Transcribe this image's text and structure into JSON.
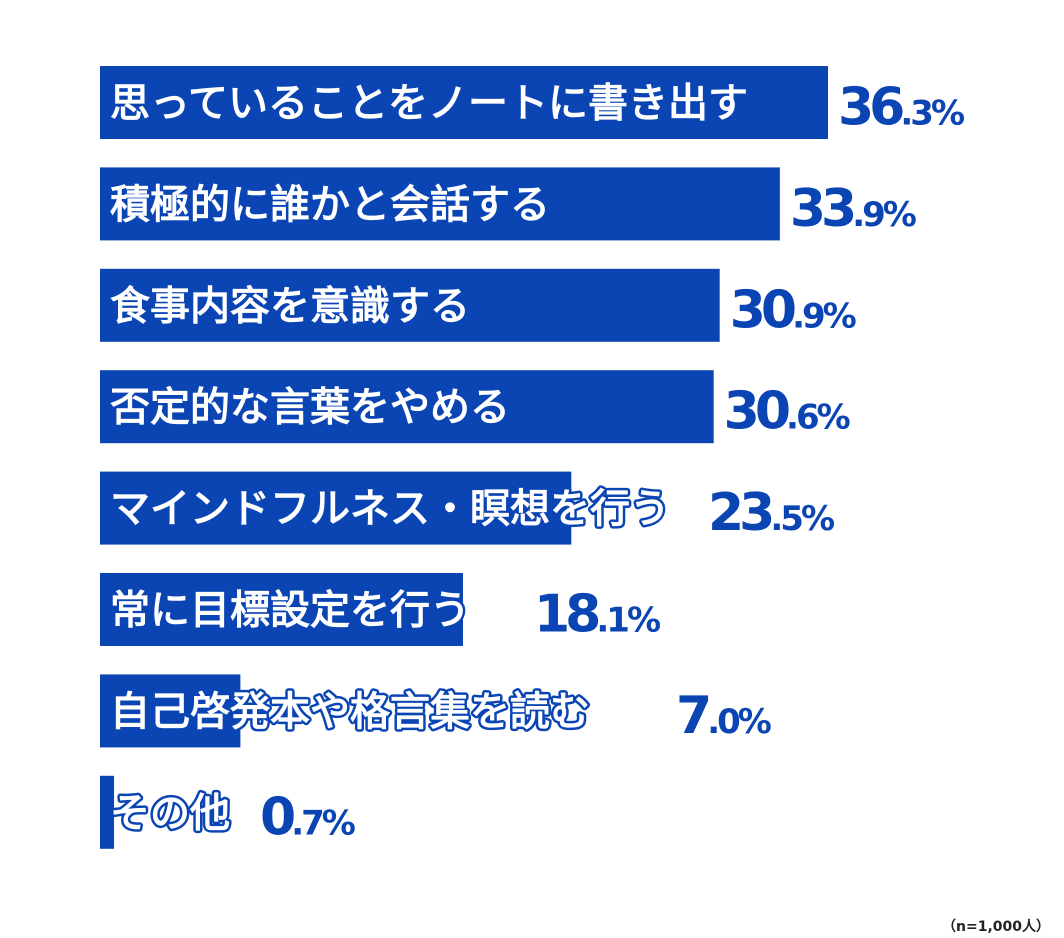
{
  "chart_data": {
    "type": "bar",
    "orientation": "horizontal",
    "categories": [
      "思っていることをノートに書き出す",
      "積極的に誰かと会話する",
      "食事内容を意識する",
      "否定的な言葉をやめる",
      "マインドフルネス・瞑想を行う",
      "常に目標設定を行う",
      "自己啓発本や格言集を読む",
      "その他"
    ],
    "values": [
      36.3,
      33.9,
      30.9,
      30.6,
      23.5,
      18.1,
      7.0,
      0.7
    ],
    "value_suffix": "%",
    "bar_color": "#0b45b4",
    "xlim": [
      0,
      36.3
    ],
    "grid": false,
    "legend": "none"
  },
  "note": "（n=1,000人）"
}
